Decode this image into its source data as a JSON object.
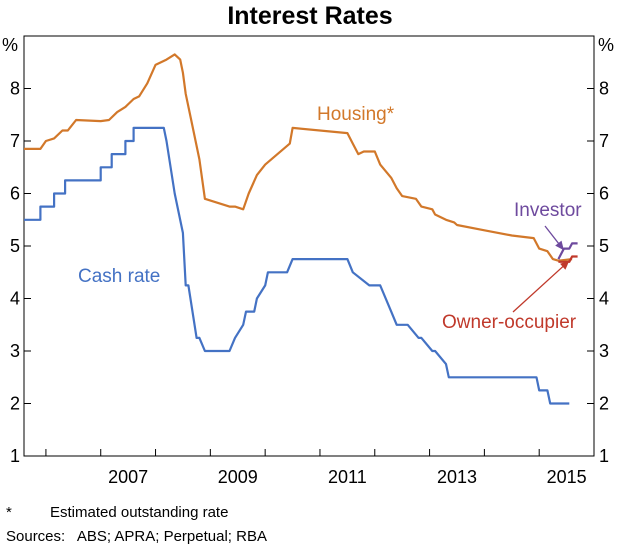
{
  "chart_data": {
    "type": "line",
    "title": "Interest Rates",
    "ylabel_left": "%",
    "ylabel_right": "%",
    "ylim": [
      1,
      9
    ],
    "xlim": [
      2005.6,
      2016.0
    ],
    "yticks": [
      1,
      2,
      3,
      4,
      5,
      6,
      7,
      8
    ],
    "xticks": [
      2007,
      2009,
      2011,
      2013,
      2015
    ],
    "grid": false,
    "series": [
      {
        "name": "Cash rate",
        "color": "#4472C4",
        "x": [
          2005.6,
          2005.9,
          2005.9,
          2006.15,
          2006.15,
          2006.35,
          2006.35,
          2006.55,
          2006.55,
          2007.0,
          2007.0,
          2007.2,
          2007.2,
          2007.45,
          2007.45,
          2007.6,
          2007.6,
          2008.15,
          2008.2,
          2008.35,
          2008.5,
          2008.55,
          2008.6,
          2008.75,
          2008.8,
          2008.9,
          2009.35,
          2009.45,
          2009.6,
          2009.65,
          2009.8,
          2009.85,
          2010.0,
          2010.05,
          2010.4,
          2010.5,
          2011.5,
          2011.6,
          2011.9,
          2011.95,
          2012.0,
          2012.1,
          2012.3,
          2012.4,
          2012.45,
          2012.6,
          2012.8,
          2012.85,
          2013.05,
          2013.1,
          2013.3,
          2013.35,
          2014.95,
          2015.0,
          2015.15,
          2015.2,
          2015.55
        ],
        "values": [
          5.5,
          5.5,
          5.75,
          5.75,
          6.0,
          6.0,
          6.25,
          6.25,
          6.25,
          6.25,
          6.5,
          6.5,
          6.75,
          6.75,
          7.0,
          7.0,
          7.25,
          7.25,
          7.0,
          6.0,
          5.25,
          4.25,
          4.25,
          3.25,
          3.25,
          3.0,
          3.0,
          3.25,
          3.5,
          3.75,
          3.75,
          4.0,
          4.25,
          4.5,
          4.5,
          4.75,
          4.75,
          4.5,
          4.25,
          4.25,
          4.25,
          4.25,
          3.75,
          3.5,
          3.5,
          3.5,
          3.25,
          3.25,
          3.0,
          3.0,
          2.75,
          2.5,
          2.5,
          2.25,
          2.25,
          2.0,
          2.0
        ]
      },
      {
        "name": "Housing*",
        "color": "#D2782A",
        "x": [
          2005.6,
          2005.9,
          2006.0,
          2006.15,
          2006.3,
          2006.4,
          2006.55,
          2007.0,
          2007.15,
          2007.3,
          2007.45,
          2007.6,
          2007.7,
          2007.85,
          2008.0,
          2008.1,
          2008.2,
          2008.35,
          2008.45,
          2008.5,
          2008.55,
          2008.65,
          2008.8,
          2008.9,
          2009.35,
          2009.45,
          2009.6,
          2009.7,
          2009.85,
          2010.0,
          2010.45,
          2010.5,
          2011.5,
          2011.6,
          2011.7,
          2011.8,
          2012.0,
          2012.1,
          2012.3,
          2012.4,
          2012.5,
          2012.75,
          2012.85,
          2013.05,
          2013.1,
          2013.3,
          2013.45,
          2013.5,
          2014.0,
          2014.5,
          2014.9,
          2015.0,
          2015.15,
          2015.25,
          2015.35,
          2015.6
        ],
        "values": [
          6.85,
          6.85,
          7.0,
          7.05,
          7.2,
          7.2,
          7.4,
          7.38,
          7.4,
          7.55,
          7.65,
          7.8,
          7.85,
          8.1,
          8.45,
          8.5,
          8.55,
          8.65,
          8.55,
          8.3,
          7.9,
          7.4,
          6.65,
          5.9,
          5.75,
          5.75,
          5.7,
          6.0,
          6.35,
          6.55,
          6.95,
          7.25,
          7.15,
          6.95,
          6.75,
          6.8,
          6.8,
          6.55,
          6.3,
          6.1,
          5.95,
          5.9,
          5.75,
          5.7,
          5.6,
          5.5,
          5.45,
          5.4,
          5.3,
          5.2,
          5.15,
          4.95,
          4.9,
          4.75,
          4.72,
          4.75
        ]
      },
      {
        "name": "Investor",
        "color": "#6E4A9E",
        "x": [
          2015.35,
          2015.45,
          2015.55,
          2015.6,
          2015.7
        ],
        "values": [
          4.75,
          4.95,
          4.95,
          5.05,
          5.05
        ]
      },
      {
        "name": "Owner-occupier",
        "color": "#C0392B",
        "x": [
          2015.35,
          2015.55,
          2015.6,
          2015.7
        ],
        "values": [
          4.7,
          4.7,
          4.8,
          4.8
        ]
      }
    ],
    "annotations": [
      {
        "text": "Housing*",
        "series": "Housing*"
      },
      {
        "text": "Cash rate",
        "series": "Cash rate"
      },
      {
        "text": "Investor",
        "series": "Investor",
        "arrow_to": [
          2015.45,
          4.92
        ]
      },
      {
        "text": "Owner-occupier",
        "series": "Owner-occupier",
        "arrow_to": [
          2015.55,
          4.72
        ]
      }
    ],
    "footnotes": {
      "star": "*",
      "note": "Estimated outstanding rate",
      "sources": "Sources:   ABS; APRA; Perpetual; RBA"
    }
  }
}
